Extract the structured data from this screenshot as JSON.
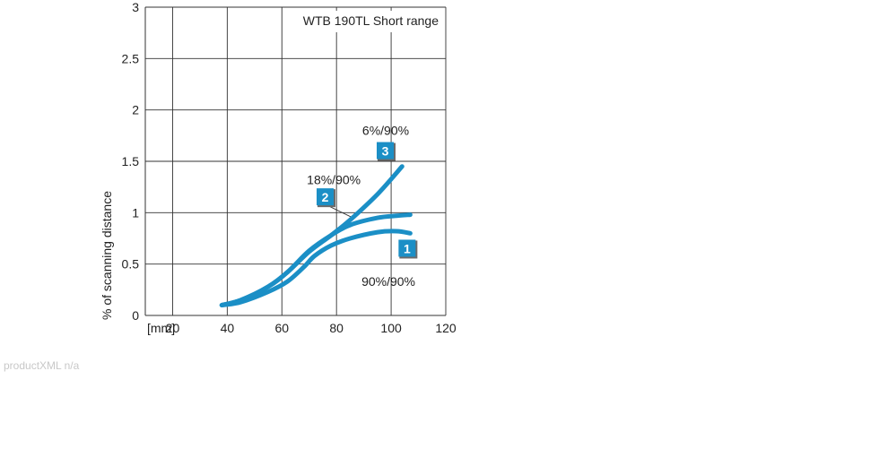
{
  "chart_data": {
    "type": "line",
    "title": "WTB 190TL Short range",
    "xlabel": "",
    "x_unit_label": "[mm]",
    "ylabel": "% of scanning distance",
    "xlim": [
      10,
      120
    ],
    "ylim": [
      0,
      3
    ],
    "xticks": [
      20,
      40,
      60,
      80,
      100,
      120
    ],
    "yticks": [
      0,
      0.5,
      1,
      1.5,
      2,
      2.5,
      3
    ],
    "ytick_labels": [
      "0",
      "0.5",
      "1",
      "1.5",
      "2",
      "2.5",
      "3"
    ],
    "grid": true,
    "series_color": "#1b8fc6",
    "marker_color": "#1b8fc6",
    "series": [
      {
        "name": "1",
        "label": "90%/90%",
        "x": [
          38,
          45,
          55,
          62,
          68,
          72,
          78,
          85,
          95,
          102,
          107
        ],
        "y": [
          0.1,
          0.13,
          0.23,
          0.33,
          0.47,
          0.58,
          0.68,
          0.75,
          0.81,
          0.82,
          0.8
        ]
      },
      {
        "name": "2",
        "label": "18%/90%",
        "x": [
          38,
          45,
          55,
          62,
          70,
          78,
          85,
          95,
          102,
          107
        ],
        "y": [
          0.1,
          0.15,
          0.28,
          0.42,
          0.63,
          0.78,
          0.88,
          0.95,
          0.97,
          0.98
        ]
      },
      {
        "name": "3",
        "label": "6%/90%",
        "x": [
          38,
          45,
          55,
          62,
          70,
          78,
          85,
          95,
          104
        ],
        "y": [
          0.1,
          0.15,
          0.28,
          0.42,
          0.62,
          0.78,
          0.93,
          1.18,
          1.45
        ]
      }
    ],
    "markers": [
      {
        "label": "1",
        "x": 106,
        "y": 0.65
      },
      {
        "label": "2",
        "x": 76,
        "y": 1.15
      },
      {
        "label": "3",
        "x": 98,
        "y": 1.6
      }
    ],
    "annotations": [
      {
        "text": "6%/90%",
        "x": 98,
        "y": 1.8
      },
      {
        "text": "18%/90%",
        "x": 79,
        "y": 1.32
      },
      {
        "text": "90%/90%",
        "x": 99,
        "y": 0.33
      }
    ],
    "leaders": [
      {
        "x1": 76,
        "y1": 1.08,
        "x2": 86,
        "y2": 0.95
      }
    ]
  },
  "footer": "productXML n/a"
}
